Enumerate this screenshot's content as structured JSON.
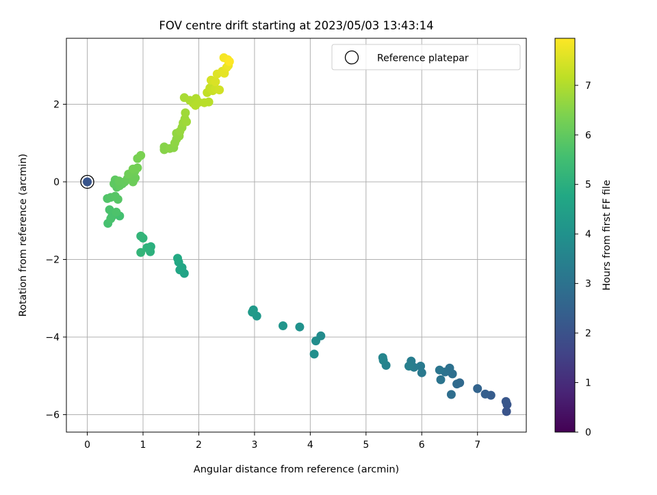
{
  "chart_data": {
    "type": "scatter",
    "title": "FOV centre drift starting at 2023/05/03 13:43:14",
    "xlabel": "Angular distance from reference (arcmin)",
    "ylabel": "Rotation from reference (arcmin)",
    "xlim": [
      -0.375,
      7.875
    ],
    "ylim": [
      -6.45,
      3.7
    ],
    "xticks": [
      0,
      1,
      2,
      3,
      4,
      5,
      6,
      7
    ],
    "xtick_labels": [
      "0",
      "1",
      "2",
      "3",
      "4",
      "5",
      "6",
      "7"
    ],
    "yticks": [
      -6,
      -4,
      -2,
      0,
      2
    ],
    "ytick_labels": [
      "−6",
      "−4",
      "−2",
      "0",
      "2"
    ],
    "grid": true,
    "legend": {
      "position": "top-right",
      "label": "Reference platepar"
    },
    "colorbar": {
      "label": "Hours from first FF file",
      "colormap": "viridis",
      "range": [
        0,
        7.95
      ],
      "ticks": [
        0,
        1,
        2,
        3,
        4,
        5,
        6,
        7
      ],
      "tick_labels": [
        "0",
        "1",
        "2",
        "3",
        "4",
        "5",
        "6",
        "7"
      ]
    },
    "reference_point": {
      "x": 0,
      "y": 0,
      "t": 2.1
    },
    "points": [
      {
        "x": 7.52,
        "y": -5.92,
        "t": 2.05
      },
      {
        "x": 7.53,
        "y": -5.74,
        "t": 2.1
      },
      {
        "x": 7.51,
        "y": -5.66,
        "t": 2.15
      },
      {
        "x": 7.24,
        "y": -5.5,
        "t": 2.3
      },
      {
        "x": 7.14,
        "y": -5.47,
        "t": 2.4
      },
      {
        "x": 7.0,
        "y": -5.33,
        "t": 2.55
      },
      {
        "x": 6.68,
        "y": -5.18,
        "t": 2.7
      },
      {
        "x": 6.63,
        "y": -5.21,
        "t": 2.75
      },
      {
        "x": 6.53,
        "y": -5.48,
        "t": 2.85
      },
      {
        "x": 6.55,
        "y": -4.95,
        "t": 2.9
      },
      {
        "x": 6.5,
        "y": -4.8,
        "t": 2.95
      },
      {
        "x": 6.42,
        "y": -4.9,
        "t": 3.0
      },
      {
        "x": 6.34,
        "y": -5.1,
        "t": 3.05
      },
      {
        "x": 6.32,
        "y": -4.85,
        "t": 3.1
      },
      {
        "x": 6.0,
        "y": -4.92,
        "t": 3.2
      },
      {
        "x": 5.98,
        "y": -4.75,
        "t": 3.25
      },
      {
        "x": 5.86,
        "y": -4.78,
        "t": 3.3
      },
      {
        "x": 5.81,
        "y": -4.62,
        "t": 3.35
      },
      {
        "x": 5.77,
        "y": -4.75,
        "t": 3.4
      },
      {
        "x": 5.36,
        "y": -4.73,
        "t": 3.5
      },
      {
        "x": 5.31,
        "y": -4.6,
        "t": 3.55
      },
      {
        "x": 5.3,
        "y": -4.53,
        "t": 3.6
      },
      {
        "x": 4.19,
        "y": -3.97,
        "t": 3.8
      },
      {
        "x": 4.1,
        "y": -4.1,
        "t": 3.85
      },
      {
        "x": 4.07,
        "y": -4.44,
        "t": 3.9
      },
      {
        "x": 3.81,
        "y": -3.74,
        "t": 4.0
      },
      {
        "x": 3.51,
        "y": -3.71,
        "t": 4.1
      },
      {
        "x": 3.04,
        "y": -3.46,
        "t": 4.2
      },
      {
        "x": 2.98,
        "y": -3.3,
        "t": 4.25
      },
      {
        "x": 2.96,
        "y": -3.36,
        "t": 4.3
      },
      {
        "x": 1.74,
        "y": -2.36,
        "t": 4.6
      },
      {
        "x": 1.7,
        "y": -2.21,
        "t": 4.65
      },
      {
        "x": 1.66,
        "y": -2.27,
        "t": 4.7
      },
      {
        "x": 1.64,
        "y": -2.07,
        "t": 4.75
      },
      {
        "x": 1.62,
        "y": -1.97,
        "t": 4.8
      },
      {
        "x": 1.14,
        "y": -1.67,
        "t": 5.0
      },
      {
        "x": 1.13,
        "y": -1.8,
        "t": 5.05
      },
      {
        "x": 1.07,
        "y": -1.7,
        "t": 5.1
      },
      {
        "x": 1.0,
        "y": -1.45,
        "t": 5.15
      },
      {
        "x": 0.96,
        "y": -1.4,
        "t": 5.2
      },
      {
        "x": 0.96,
        "y": -1.82,
        "t": 5.2
      },
      {
        "x": 0.58,
        "y": -0.88,
        "t": 5.55
      },
      {
        "x": 0.44,
        "y": -0.9,
        "t": 5.6
      },
      {
        "x": 0.4,
        "y": -0.72,
        "t": 5.65
      },
      {
        "x": 0.37,
        "y": -1.07,
        "t": 5.6
      },
      {
        "x": 0.42,
        "y": -0.95,
        "t": 5.65
      },
      {
        "x": 0.52,
        "y": -0.78,
        "t": 5.7
      },
      {
        "x": 0.36,
        "y": -0.43,
        "t": 5.75
      },
      {
        "x": 0.42,
        "y": -0.4,
        "t": 5.8
      },
      {
        "x": 0.5,
        "y": -0.37,
        "t": 5.85
      },
      {
        "x": 0.55,
        "y": -0.45,
        "t": 5.85
      },
      {
        "x": 0.53,
        "y": -0.14,
        "t": 5.9
      },
      {
        "x": 0.48,
        "y": -0.05,
        "t": 5.95
      },
      {
        "x": 0.5,
        "y": 0.05,
        "t": 5.95
      },
      {
        "x": 0.58,
        "y": -0.1,
        "t": 6.0
      },
      {
        "x": 0.63,
        "y": -0.05,
        "t": 6.0
      },
      {
        "x": 0.57,
        "y": 0.02,
        "t": 6.05
      },
      {
        "x": 0.67,
        "y": 0.0,
        "t": 6.05
      },
      {
        "x": 0.72,
        "y": 0.08,
        "t": 6.1
      },
      {
        "x": 0.78,
        "y": 0.12,
        "t": 6.1
      },
      {
        "x": 0.82,
        "y": 0.0,
        "t": 6.15
      },
      {
        "x": 0.86,
        "y": 0.1,
        "t": 6.15
      },
      {
        "x": 0.74,
        "y": 0.2,
        "t": 6.2
      },
      {
        "x": 0.85,
        "y": 0.27,
        "t": 6.2
      },
      {
        "x": 0.9,
        "y": 0.36,
        "t": 6.25
      },
      {
        "x": 0.82,
        "y": 0.33,
        "t": 6.25
      },
      {
        "x": 0.9,
        "y": 0.6,
        "t": 6.3
      },
      {
        "x": 0.96,
        "y": 0.68,
        "t": 6.35
      },
      {
        "x": 1.38,
        "y": 0.83,
        "t": 6.5
      },
      {
        "x": 1.38,
        "y": 0.9,
        "t": 6.5
      },
      {
        "x": 1.48,
        "y": 0.86,
        "t": 6.55
      },
      {
        "x": 1.55,
        "y": 0.88,
        "t": 6.55
      },
      {
        "x": 1.57,
        "y": 1.0,
        "t": 6.6
      },
      {
        "x": 1.6,
        "y": 1.1,
        "t": 6.6
      },
      {
        "x": 1.6,
        "y": 1.25,
        "t": 6.65
      },
      {
        "x": 1.65,
        "y": 1.18,
        "t": 6.65
      },
      {
        "x": 1.66,
        "y": 1.3,
        "t": 6.7
      },
      {
        "x": 1.7,
        "y": 1.4,
        "t": 6.7
      },
      {
        "x": 1.72,
        "y": 1.52,
        "t": 6.75
      },
      {
        "x": 1.75,
        "y": 1.62,
        "t": 6.75
      },
      {
        "x": 1.78,
        "y": 1.55,
        "t": 6.8
      },
      {
        "x": 1.76,
        "y": 1.78,
        "t": 6.8
      },
      {
        "x": 1.74,
        "y": 2.17,
        "t": 6.9
      },
      {
        "x": 1.84,
        "y": 2.1,
        "t": 6.95
      },
      {
        "x": 1.9,
        "y": 2.03,
        "t": 7.0
      },
      {
        "x": 1.95,
        "y": 2.15,
        "t": 7.0
      },
      {
        "x": 1.94,
        "y": 1.97,
        "t": 7.05
      },
      {
        "x": 2.0,
        "y": 2.05,
        "t": 7.05
      },
      {
        "x": 2.1,
        "y": 2.04,
        "t": 7.1
      },
      {
        "x": 2.18,
        "y": 2.06,
        "t": 7.1
      },
      {
        "x": 2.15,
        "y": 2.3,
        "t": 7.2
      },
      {
        "x": 2.2,
        "y": 2.42,
        "t": 7.25
      },
      {
        "x": 2.25,
        "y": 2.35,
        "t": 7.3
      },
      {
        "x": 2.3,
        "y": 2.4,
        "t": 7.35
      },
      {
        "x": 2.37,
        "y": 2.37,
        "t": 7.4
      },
      {
        "x": 2.22,
        "y": 2.62,
        "t": 7.45
      },
      {
        "x": 2.3,
        "y": 2.58,
        "t": 7.5
      },
      {
        "x": 2.33,
        "y": 2.78,
        "t": 7.55
      },
      {
        "x": 2.42,
        "y": 2.85,
        "t": 7.6
      },
      {
        "x": 2.46,
        "y": 2.8,
        "t": 7.65
      },
      {
        "x": 2.5,
        "y": 2.95,
        "t": 7.7
      },
      {
        "x": 2.53,
        "y": 3.0,
        "t": 7.75
      },
      {
        "x": 2.45,
        "y": 3.2,
        "t": 7.85
      },
      {
        "x": 2.52,
        "y": 3.15,
        "t": 7.9
      },
      {
        "x": 2.55,
        "y": 3.1,
        "t": 7.95
      }
    ]
  }
}
